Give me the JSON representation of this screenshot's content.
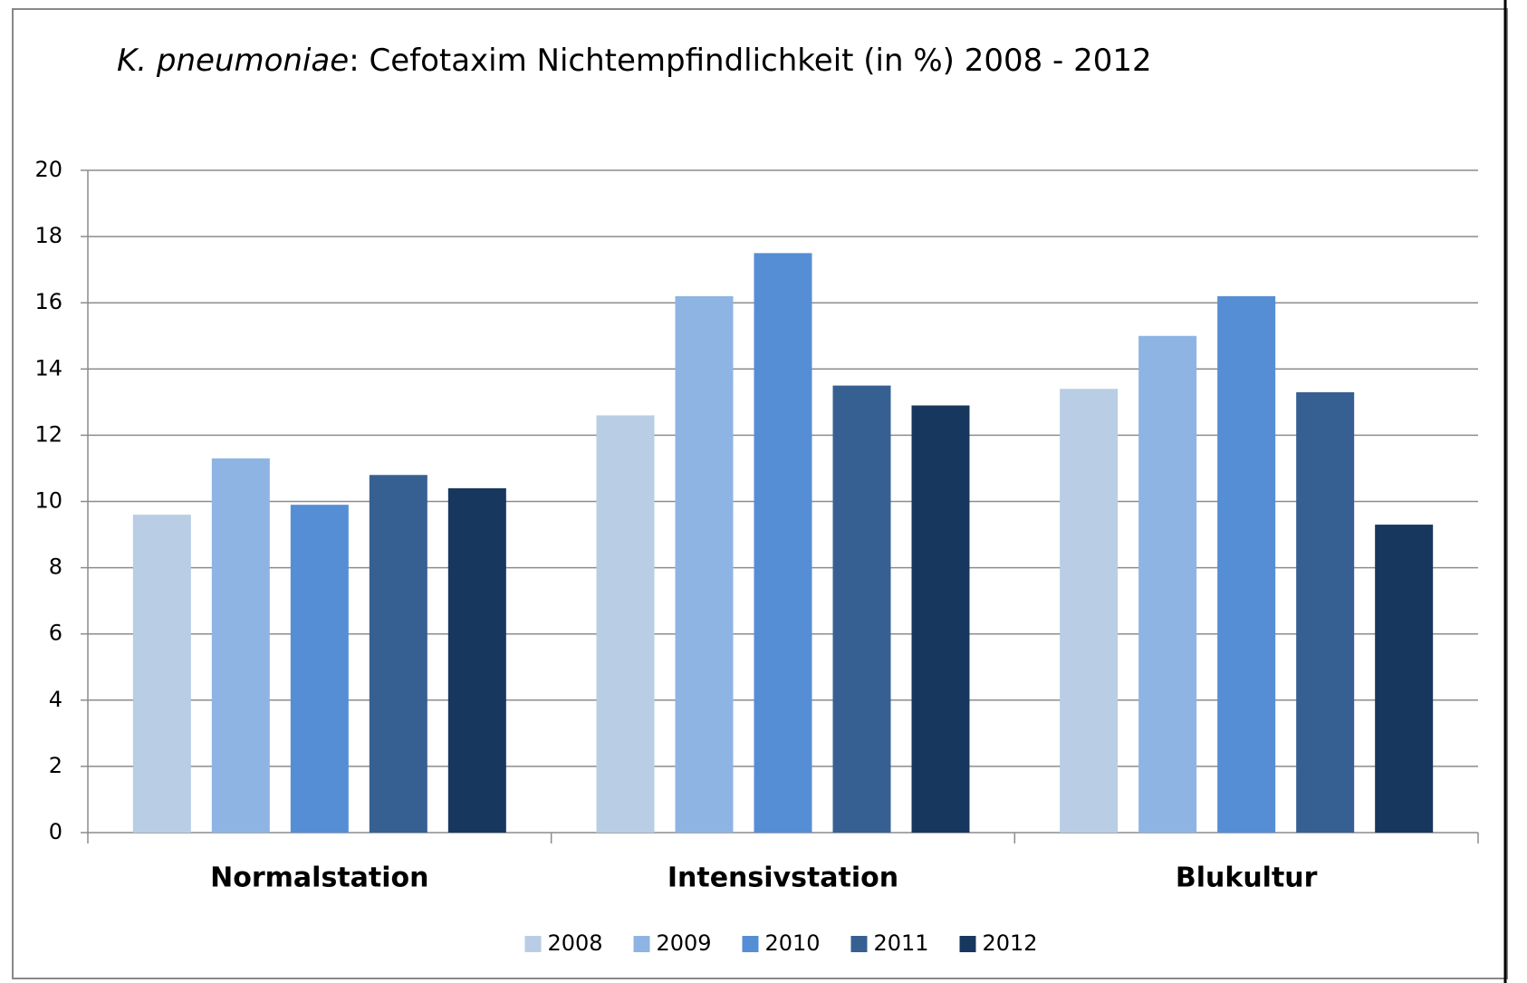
{
  "chart_data": {
    "type": "bar",
    "title": [
      "K. pneumoniae",
      ":  Cefotaxim Nichtempfindlichkeit  (in %) 2008 - 2012"
    ],
    "categories": [
      "Normalstation",
      "Intensivstation",
      "Blukultur"
    ],
    "series": [
      {
        "name": "2008",
        "color": "#b9cde5",
        "values": [
          9.6,
          12.6,
          13.4
        ]
      },
      {
        "name": "2009",
        "color": "#8eb4e3",
        "values": [
          11.3,
          16.2,
          15.0
        ]
      },
      {
        "name": "2010",
        "color": "#558ed5",
        "values": [
          9.9,
          17.5,
          16.2
        ]
      },
      {
        "name": "2011",
        "color": "#376092",
        "values": [
          10.8,
          13.5,
          13.3
        ]
      },
      {
        "name": "2012",
        "color": "#17375e",
        "values": [
          10.4,
          12.9,
          9.3
        ]
      }
    ],
    "ylim": [
      0,
      20
    ],
    "yticks": [
      0,
      2,
      4,
      6,
      8,
      10,
      12,
      14,
      16,
      18,
      20
    ],
    "grid": true,
    "legend": "bottom"
  }
}
